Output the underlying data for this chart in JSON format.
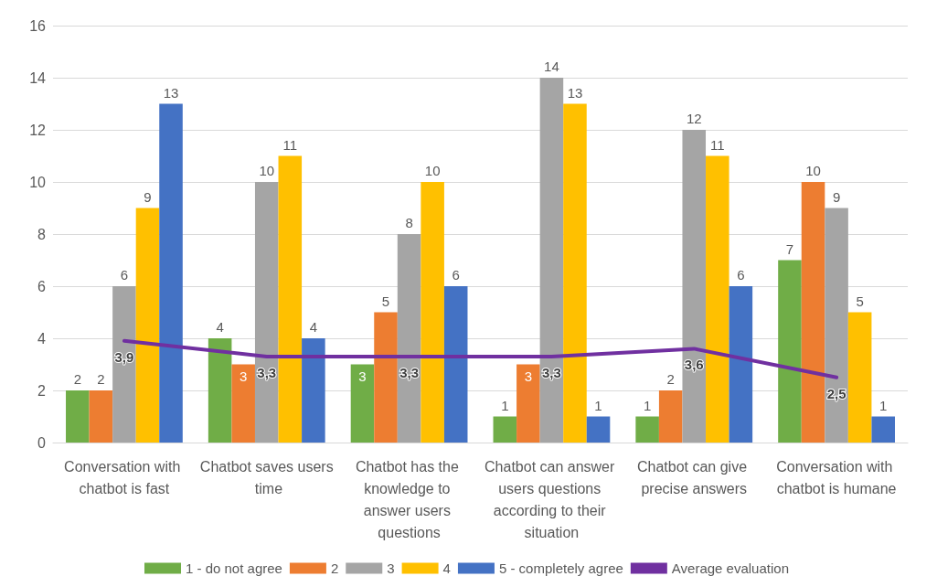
{
  "chart_data": {
    "type": "bar",
    "categories": [
      "Conversation with chatbot is fast",
      "Chatbot saves users time",
      "Chatbot has the knowledge to answer users questions",
      "Chatbot can answer users questions according to their situation",
      "Chatbot can give precise answers",
      "Conversation with chatbot is humane"
    ],
    "series": [
      {
        "name": "1 - do not agree",
        "color": "#70ad47",
        "values": [
          2,
          4,
          3,
          1,
          1,
          7
        ]
      },
      {
        "name": "2",
        "color": "#ed7d31",
        "values": [
          2,
          3,
          5,
          3,
          2,
          10
        ]
      },
      {
        "name": "3",
        "color": "#a5a5a5",
        "values": [
          6,
          10,
          8,
          14,
          12,
          9
        ]
      },
      {
        "name": "4",
        "color": "#ffc000",
        "values": [
          9,
          11,
          10,
          13,
          11,
          5
        ]
      },
      {
        "name": "5 - completely agree",
        "color": "#4472c4",
        "values": [
          13,
          4,
          6,
          1,
          6,
          1
        ]
      },
      {
        "name": "Average evaluation",
        "type": "line",
        "color": "#7030a0",
        "marker": "none",
        "values": [
          3.9,
          3.3,
          3.3,
          3.3,
          3.6,
          2.5
        ],
        "value_labels": [
          "3,9",
          "3,3",
          "3,3",
          "3,3",
          "3,6",
          "2,5"
        ]
      }
    ],
    "data_labels": true,
    "ylim": [
      0,
      16
    ],
    "yticks": [
      0,
      2,
      4,
      6,
      8,
      10,
      12,
      14,
      16
    ],
    "grid": "y",
    "legend": "bottom"
  }
}
